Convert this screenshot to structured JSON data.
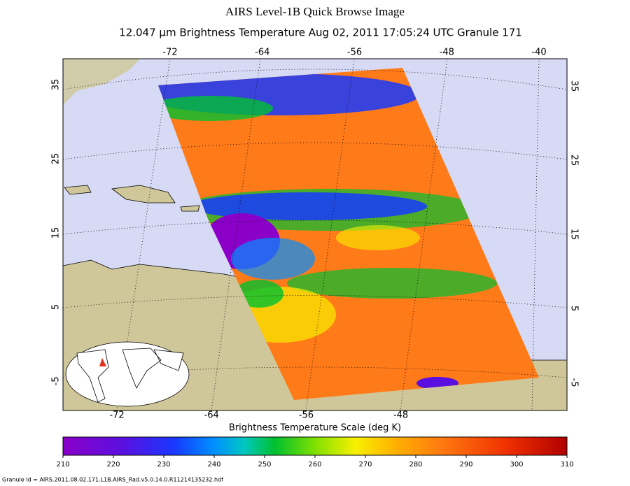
{
  "header": {
    "title": "AIRS Level-1B Quick Browse Image",
    "subtitle": "12.047 μm Brightness Temperature   Aug 02, 2011 17:05:24 UTC  Granule 171"
  },
  "map": {
    "top_lon_labels": [
      -72,
      -64,
      -56,
      -48,
      -40
    ],
    "bottom_lon_labels": [
      -72,
      -64,
      -56,
      -48
    ],
    "left_lat_labels": [
      35,
      25,
      15,
      5,
      -5
    ],
    "right_lat_labels": [
      35,
      25,
      15,
      5,
      -5
    ]
  },
  "colorbar": {
    "title": "Brightness Temperature Scale (deg K)",
    "lim": [
      210,
      310
    ],
    "ticks": [
      210,
      220,
      230,
      240,
      250,
      260,
      270,
      280,
      290,
      300,
      310
    ]
  },
  "footer": "Granule Id = AIRS.2011.08.02.171.L1B.AIRS_Rad.v5.0.14.0.R11214135232.hdf"
}
